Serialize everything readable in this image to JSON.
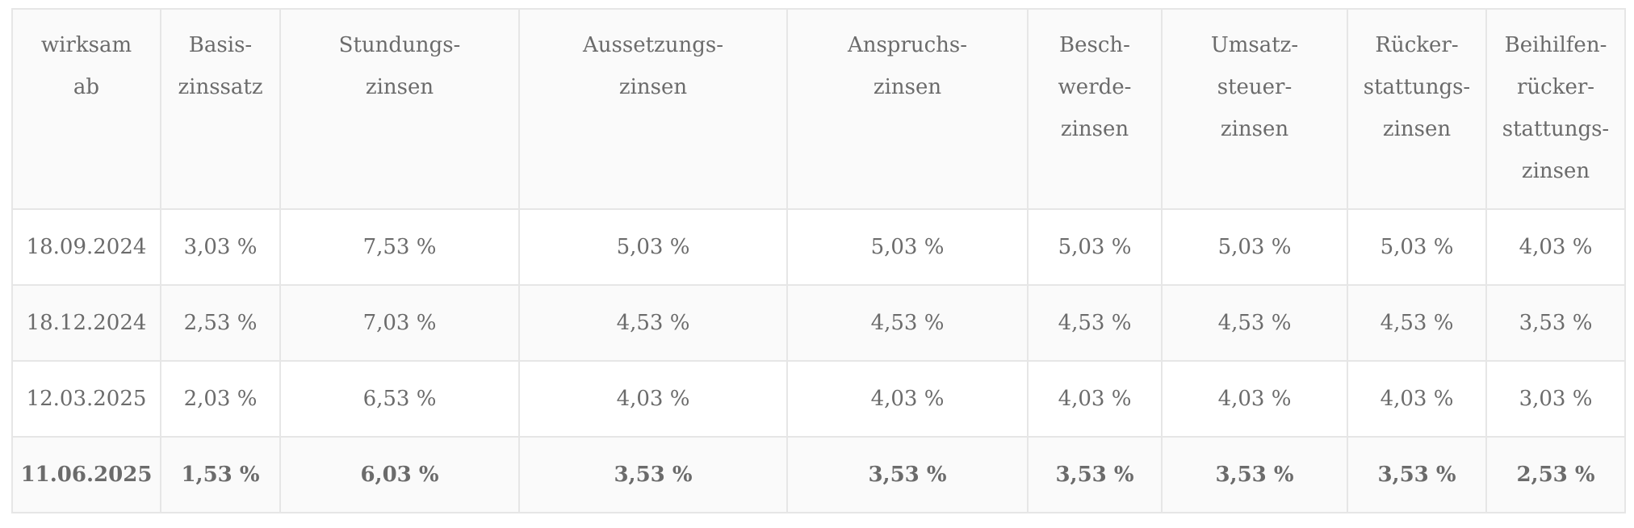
{
  "table": {
    "headers": [
      [
        "wirksam",
        "ab"
      ],
      [
        "Basis-",
        "zinssatz"
      ],
      [
        "Stundungs-",
        "zinsen"
      ],
      [
        "Aussetzungs-",
        "zinsen"
      ],
      [
        "Anspruchs-",
        "zinsen"
      ],
      [
        "Besch-",
        "werde-",
        "zinsen"
      ],
      [
        "Umsatz-",
        "steuer-",
        "zinsen"
      ],
      [
        "Rücker-",
        "stattungs-",
        "zinsen"
      ],
      [
        "Beihilfen-",
        "rücker-",
        "stattungs-",
        "zinsen"
      ]
    ],
    "rows": [
      [
        "18.09.2024",
        "3,03 %",
        "7,53 %",
        "5,03 %",
        "5,03 %",
        "5,03 %",
        "5,03 %",
        "5,03 %",
        "4,03 %"
      ],
      [
        "18.12.2024",
        "2,53 %",
        "7,03 %",
        "4,53 %",
        "4,53 %",
        "4,53 %",
        "4,53 %",
        "4,53 %",
        "3,53 %"
      ],
      [
        "12.03.2025",
        "2,03 %",
        "6,53 %",
        "4,03 %",
        "4,03 %",
        "4,03 %",
        "4,03 %",
        "4,03 %",
        "3,03 %"
      ],
      [
        "11.06.2025",
        "1,53 %",
        "6,03 %",
        "3,53 %",
        "3,53 %",
        "3,53 %",
        "3,53 %",
        "3,53 %",
        "2,53 %"
      ]
    ]
  }
}
